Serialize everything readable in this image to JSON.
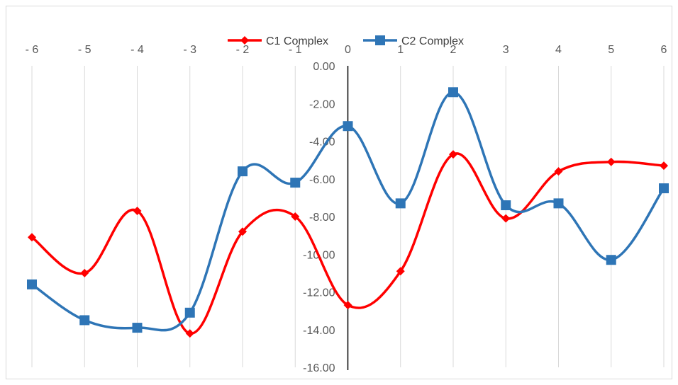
{
  "chart_data": {
    "type": "line",
    "title": "",
    "xlabel": "",
    "ylabel": "",
    "x": [
      -6,
      -5,
      -4,
      -3,
      -2,
      -1,
      0,
      1,
      2,
      3,
      4,
      5,
      6
    ],
    "x_tick_labels": [
      "- 6",
      "- 5",
      "- 4",
      "- 3",
      "- 2",
      "- 1",
      "0",
      "1",
      "2",
      "3",
      "4",
      "5",
      "6"
    ],
    "y_tick_labels": [
      "0.00",
      "-2.00",
      "-4.00",
      "-6.00",
      "-8.00",
      "-10.00",
      "-12.00",
      "-14.00",
      "-16.00"
    ],
    "xlim": [
      -6,
      6
    ],
    "ylim": [
      -16,
      0
    ],
    "grid": "vertical",
    "smoothed": true,
    "legend_position": "top",
    "series": [
      {
        "name": "C1 Complex",
        "color": "#ff0000",
        "marker": "diamond",
        "values": [
          -9.1,
          -11.0,
          -7.7,
          -14.2,
          -8.8,
          -8.0,
          -12.7,
          -10.9,
          -4.7,
          -8.1,
          -5.6,
          -5.1,
          -5.3
        ]
      },
      {
        "name": "C2 Complex",
        "color": "#2e75b6",
        "marker": "square",
        "values": [
          -11.6,
          -13.5,
          -13.9,
          -13.1,
          -5.6,
          -6.2,
          -3.2,
          -7.3,
          -1.4,
          -7.4,
          -7.3,
          -10.3,
          -6.5
        ]
      }
    ]
  }
}
